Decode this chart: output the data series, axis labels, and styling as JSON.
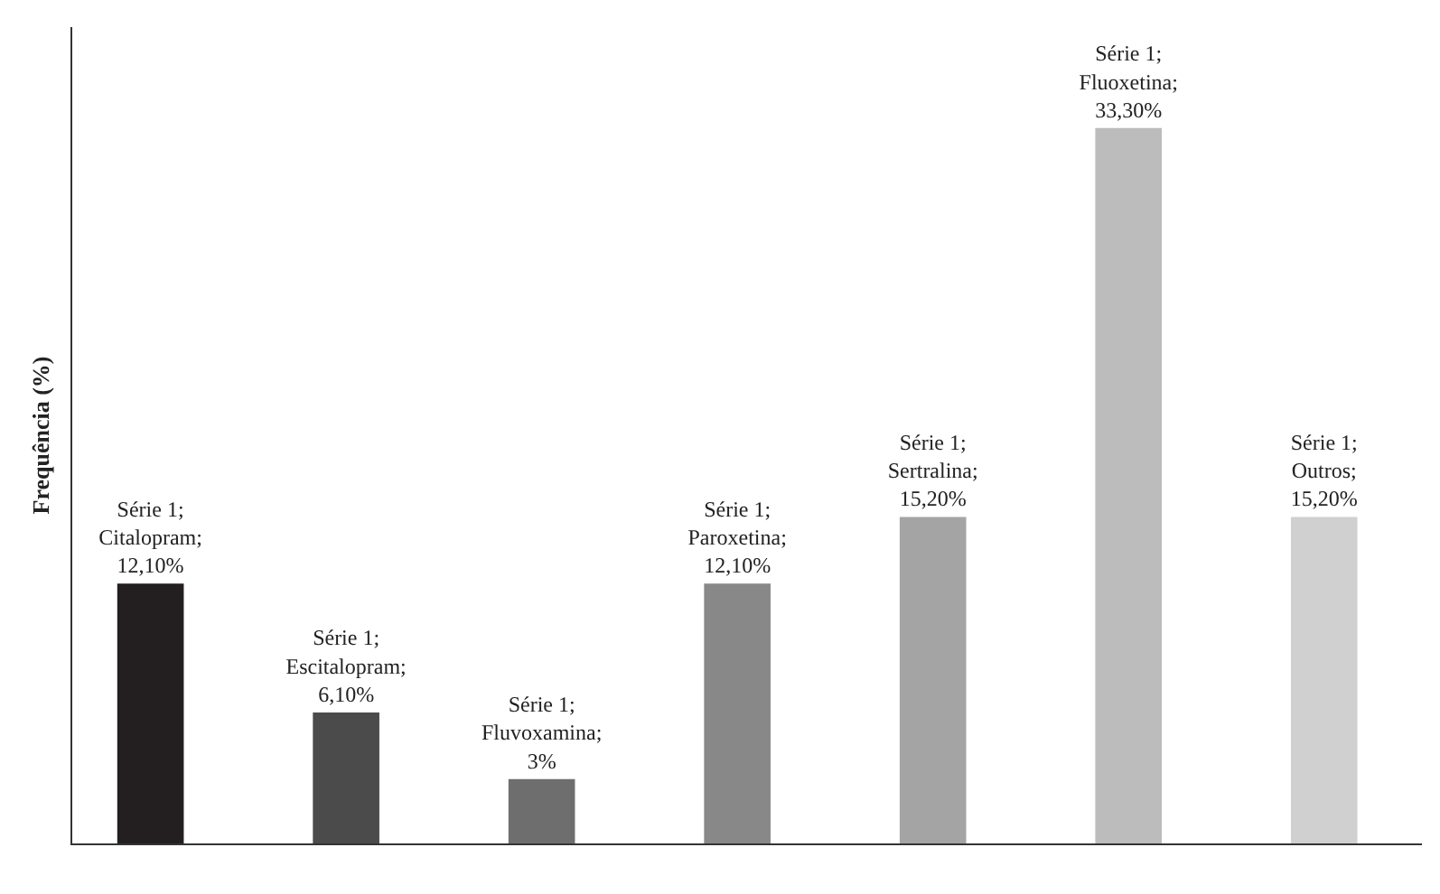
{
  "chart_data": {
    "type": "bar",
    "ylabel": "Frequência (%)",
    "categories": [
      null,
      null,
      null,
      null,
      null,
      null,
      null
    ],
    "values": [
      12.1,
      6.1,
      3,
      12.1,
      15.2,
      33.3,
      15.2
    ],
    "colors": [
      "#231f20",
      "#4b4b4b",
      "#6e6e6e",
      "#888888",
      "#a4a4a4",
      "#bcbcbc",
      "#d0d0d0"
    ],
    "value_labels": [
      "Série 1;\nCitalopram;\n12,10%",
      "Série 1;\nEscitalopram;\n6,10%",
      "Série 1;\nFluvoxamina;\n3%",
      "Série 1;\nParoxetina;\n12,10%",
      "Série 1;\nSertralina;\n15,20%",
      "Série 1;\nFluoxetina;\n33,30%",
      "Série 1;\nOutros;\n15,20%"
    ],
    "ylim": [
      0,
      38
    ]
  }
}
